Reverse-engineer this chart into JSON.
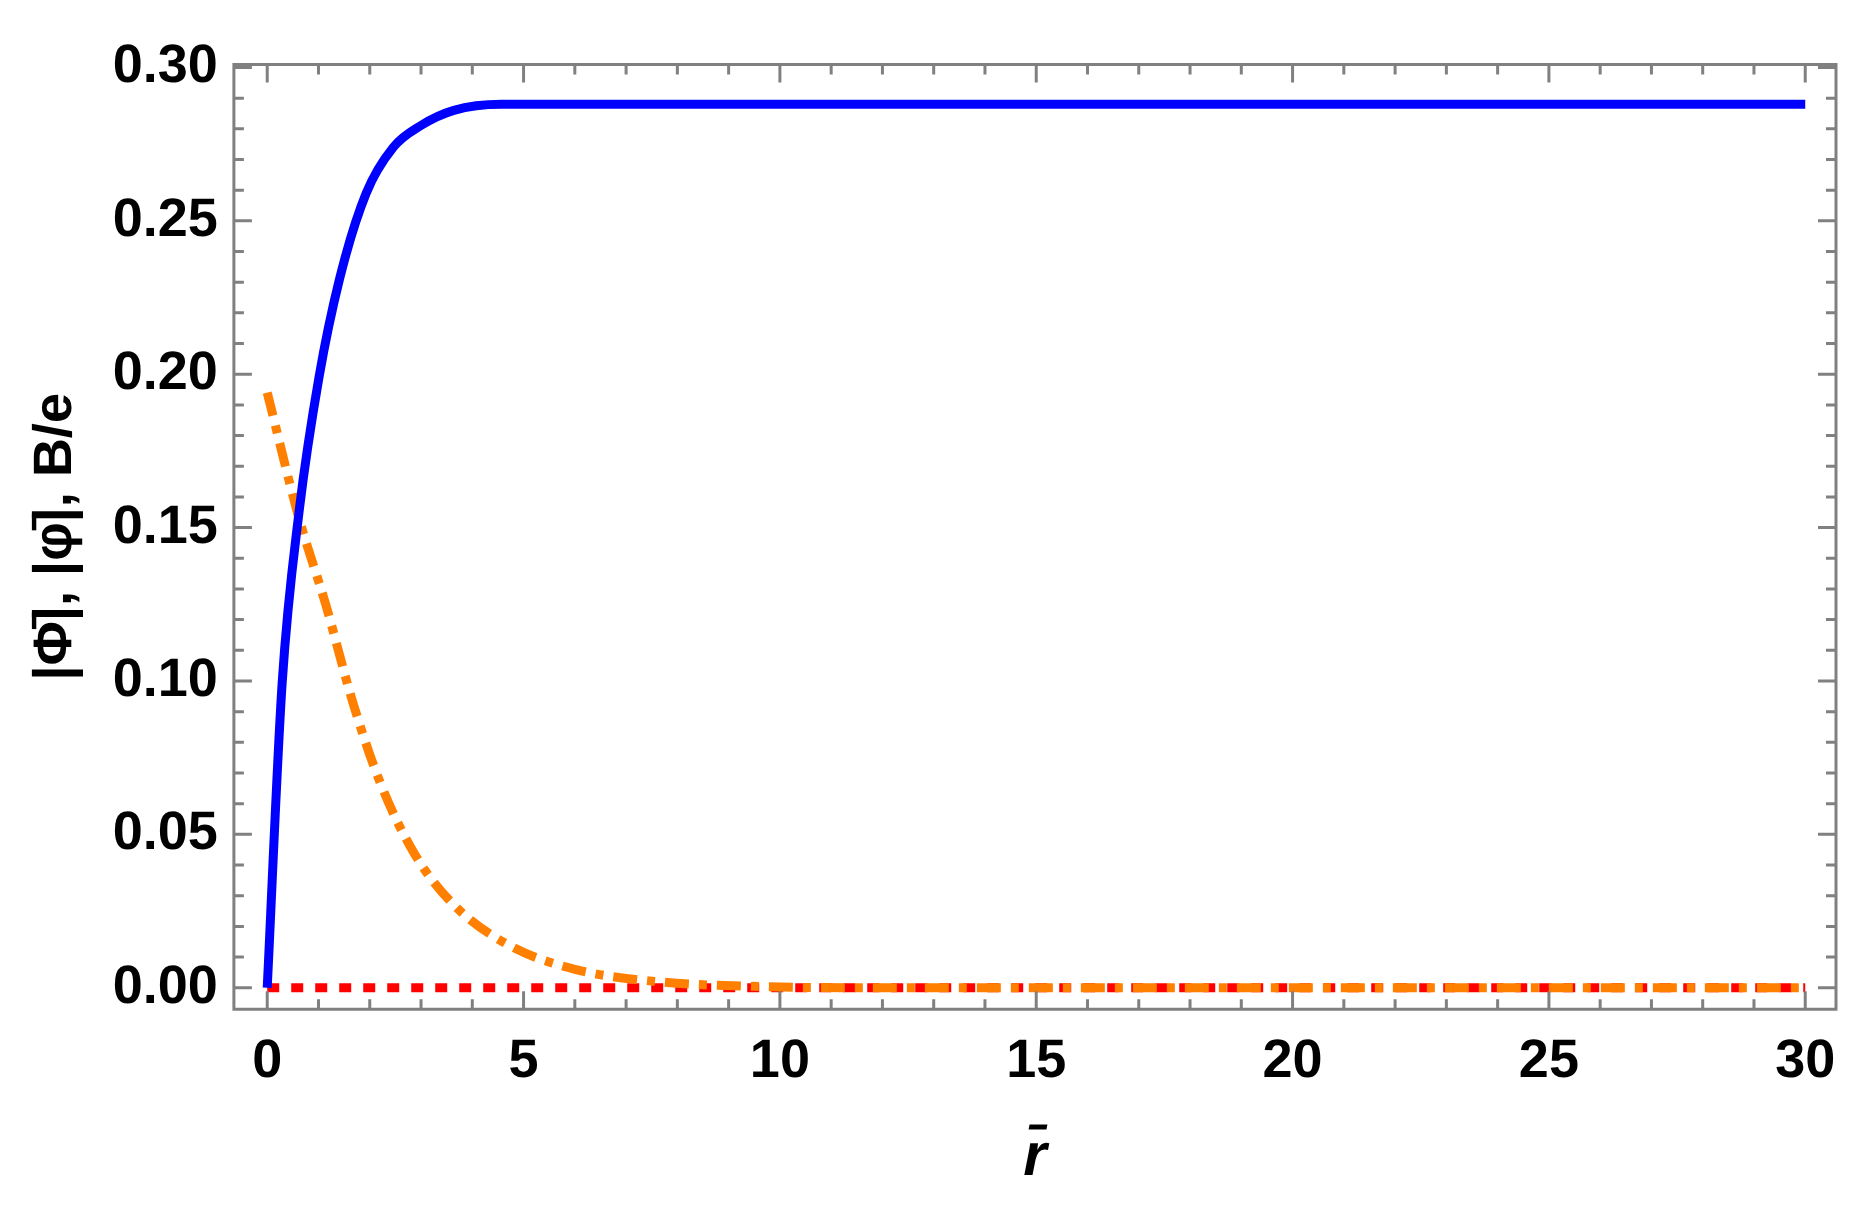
{
  "chart_data": {
    "type": "line",
    "xlabel": "r̄",
    "ylabel": "|Φ̄|, |φ̄|, B/e",
    "xlim": [
      -0.65,
      30.6
    ],
    "ylim": [
      -0.007,
      0.301
    ],
    "xticks": [
      0,
      {
        "value": 1,
        "label": null
      },
      {
        "value": 2,
        "label": null
      },
      {
        "value": 3,
        "label": null
      },
      {
        "value": 4,
        "label": null
      },
      5,
      {
        "value": 6,
        "label": null
      },
      {
        "value": 7,
        "label": null
      },
      {
        "value": 8,
        "label": null
      },
      {
        "value": 9,
        "label": null
      },
      10,
      {
        "value": 11,
        "label": null
      },
      {
        "value": 12,
        "label": null
      },
      {
        "value": 13,
        "label": null
      },
      {
        "value": 14,
        "label": null
      },
      15,
      {
        "value": 16,
        "label": null
      },
      {
        "value": 17,
        "label": null
      },
      {
        "value": 18,
        "label": null
      },
      {
        "value": 19,
        "label": null
      },
      20,
      {
        "value": 21,
        "label": null
      },
      {
        "value": 22,
        "label": null
      },
      {
        "value": 23,
        "label": null
      },
      {
        "value": 24,
        "label": null
      },
      25,
      {
        "value": 26,
        "label": null
      },
      {
        "value": 27,
        "label": null
      },
      {
        "value": 28,
        "label": null
      },
      {
        "value": 29,
        "label": null
      },
      30
    ],
    "yticks": [
      {
        "value": 0,
        "label": "0.00"
      },
      {
        "value": 0.01,
        "label": null
      },
      {
        "value": 0.02,
        "label": null
      },
      {
        "value": 0.03,
        "label": null
      },
      {
        "value": 0.04,
        "label": null
      },
      {
        "value": 0.05,
        "label": "0.05"
      },
      {
        "value": 0.06,
        "label": null
      },
      {
        "value": 0.07,
        "label": null
      },
      {
        "value": 0.08,
        "label": null
      },
      {
        "value": 0.09,
        "label": null
      },
      {
        "value": 0.1,
        "label": "0.10"
      },
      {
        "value": 0.11,
        "label": null
      },
      {
        "value": 0.12,
        "label": null
      },
      {
        "value": 0.13,
        "label": null
      },
      {
        "value": 0.14,
        "label": null
      },
      {
        "value": 0.15,
        "label": "0.15"
      },
      {
        "value": 0.16,
        "label": null
      },
      {
        "value": 0.17,
        "label": null
      },
      {
        "value": 0.18,
        "label": null
      },
      {
        "value": 0.19,
        "label": null
      },
      {
        "value": 0.2,
        "label": "0.20"
      },
      {
        "value": 0.21,
        "label": null
      },
      {
        "value": 0.22,
        "label": null
      },
      {
        "value": 0.23,
        "label": null
      },
      {
        "value": 0.24,
        "label": null
      },
      {
        "value": 0.25,
        "label": "0.25"
      },
      {
        "value": 0.26,
        "label": null
      },
      {
        "value": 0.27,
        "label": null
      },
      {
        "value": 0.28,
        "label": null
      },
      {
        "value": 0.29,
        "label": null
      },
      {
        "value": 0.3,
        "label": "0.30"
      }
    ],
    "grid": false,
    "legend": false,
    "marker": "none",
    "series": [
      {
        "color": "#0000ff",
        "line_style": "solid",
        "x": [
          0,
          0.29,
          0.62,
          1.01,
          1.41,
          1.93,
          2.46,
          2.99,
          3.64,
          4.57,
          5.6,
          10,
          20,
          30
        ],
        "values": [
          0,
          0.099,
          0.155,
          0.199,
          0.231,
          0.259,
          0.274,
          0.281,
          0.286,
          0.288,
          0.288,
          0.288,
          0.288,
          0.288
        ]
      },
      {
        "color": "#ff8000",
        "line_style": "dashdot",
        "x": [
          0,
          0.62,
          1.14,
          1.67,
          2.2,
          2.86,
          3.64,
          4.7,
          6,
          7.6,
          9.6,
          12,
          20,
          30
        ],
        "values": [
          0.194,
          0.153,
          0.125,
          0.093,
          0.067,
          0.044,
          0.027,
          0.014,
          0.006,
          0.002,
          0.0004,
          0,
          0,
          0
        ]
      },
      {
        "color": "#ff0000",
        "line_style": "dotted",
        "x": [
          0,
          30
        ],
        "values": [
          0,
          0
        ]
      }
    ]
  }
}
